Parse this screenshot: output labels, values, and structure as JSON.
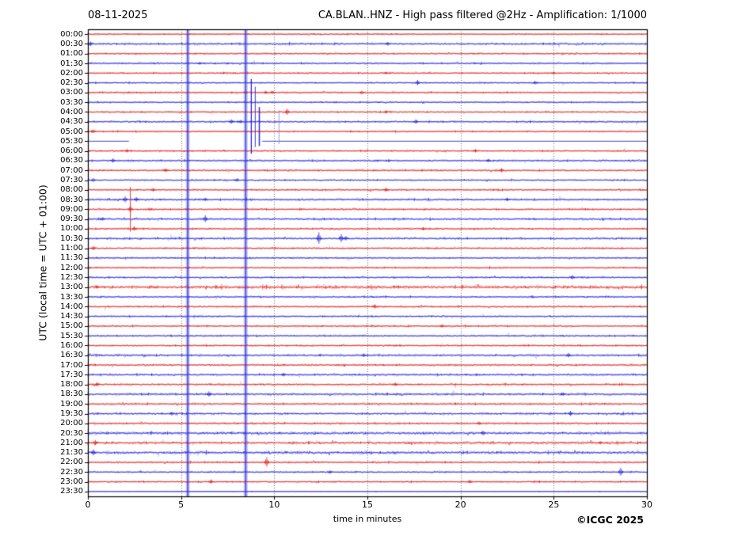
{
  "header": {
    "date": "08-11-2025",
    "title": "CA.BLAN..HNZ - High pass filtered @2Hz - Amplification: 1/1000"
  },
  "footer": {
    "credit": "©ICGC 2025"
  },
  "chart_data": {
    "type": "helicorder-seismogram",
    "station": "CA.BLAN..HNZ",
    "date": "08-11-2025",
    "filter": "High pass filtered @2Hz",
    "amplification": "1/1000",
    "xlabel": "time in minutes",
    "ylabel": "UTC (local time = UTC + 01:00)",
    "xlim": [
      0,
      30
    ],
    "x_ticks": [
      "0",
      "5",
      "10",
      "15",
      "20",
      "25",
      "30"
    ],
    "grid_minutes": [
      5,
      10,
      15,
      20,
      25
    ],
    "grid_style": "dotted",
    "legend": "none",
    "row_labels": [
      "00:00",
      "00:30",
      "01:00",
      "01:30",
      "02:00",
      "02:30",
      "03:00",
      "03:30",
      "04:00",
      "04:30",
      "05:00",
      "05:30",
      "06:00",
      "06:30",
      "07:00",
      "07:30",
      "08:00",
      "08:30",
      "09:00",
      "09:30",
      "10:00",
      "10:30",
      "11:00",
      "11:30",
      "12:00",
      "12:30",
      "13:00",
      "13:30",
      "14:00",
      "14:30",
      "15:00",
      "15:30",
      "16:00",
      "16:30",
      "17:00",
      "17:30",
      "18:00",
      "18:30",
      "19:00",
      "19:30",
      "20:00",
      "20:30",
      "21:00",
      "21:30",
      "22:00",
      "22:30",
      "23:00",
      "23:30"
    ],
    "trace_color_even": "#e01010",
    "trace_color_odd": "#1515dd",
    "frame_color": "#000000",
    "row_activity": [
      0.7,
      1.0,
      0.8,
      0.8,
      0.8,
      0.7,
      0.8,
      0.7,
      0.8,
      0.9,
      0.7,
      0.0,
      0.8,
      0.9,
      0.9,
      0.8,
      0.9,
      1.0,
      0.9,
      1.0,
      0.9,
      1.0,
      0.9,
      0.8,
      0.8,
      0.9,
      1.6,
      0.8,
      0.9,
      0.8,
      0.9,
      0.8,
      0.9,
      1.0,
      0.9,
      1.0,
      1.0,
      1.1,
      1.0,
      1.1,
      1.0,
      1.4,
      1.3,
      1.4,
      0.9,
      0.8,
      0.8,
      0.15
    ],
    "vertical_bands": [
      {
        "minute": 5.36,
        "color": "#3434d6"
      },
      {
        "minute": 8.47,
        "color": "#3434d6"
      }
    ],
    "event_columns": [
      {
        "minute": 2.28,
        "from_row": 15.7,
        "to_row": 20.3,
        "color": "#dd2222",
        "width": 1.0
      },
      {
        "minute": 8.77,
        "from_row": 4.6,
        "to_row": 12.3,
        "color": "#1111cc",
        "width": 1.3
      },
      {
        "minute": 8.98,
        "from_row": 5.4,
        "to_row": 11.6,
        "color": "#2222cc",
        "width": 1.0
      },
      {
        "minute": 9.2,
        "from_row": 7.5,
        "to_row": 11.5,
        "color": "#2222cc",
        "width": 1.6
      },
      {
        "minute": 10.26,
        "from_row": 7.8,
        "to_row": 11.3,
        "color": "#7777dd",
        "width": 0.8
      }
    ],
    "flat_rows": [
      {
        "row": 11,
        "segments": [
          [
            0,
            2.2
          ],
          [
            9.35,
            30
          ]
        ]
      }
    ],
    "events": [
      [
        1,
        0.15,
        5
      ],
      [
        1,
        16.1,
        4
      ],
      [
        3,
        6.0,
        3
      ],
      [
        4,
        16.0,
        3
      ],
      [
        4,
        25.0,
        3
      ],
      [
        5,
        17.7,
        6
      ],
      [
        5,
        24.0,
        4
      ],
      [
        6,
        9.55,
        4
      ],
      [
        6,
        9.9,
        4
      ],
      [
        6,
        14.7,
        4
      ],
      [
        8,
        10.7,
        7
      ],
      [
        8,
        16.0,
        4
      ],
      [
        9,
        7.7,
        5
      ],
      [
        9,
        8.2,
        4
      ],
      [
        9,
        17.6,
        5
      ],
      [
        10,
        0.3,
        4
      ],
      [
        12,
        2.1,
        4
      ],
      [
        12,
        20.8,
        4
      ],
      [
        13,
        1.35,
        5
      ],
      [
        13,
        21.5,
        4
      ],
      [
        14,
        4.2,
        4
      ],
      [
        14,
        22.2,
        5
      ],
      [
        15,
        0.3,
        4
      ],
      [
        15,
        8.0,
        4
      ],
      [
        16,
        3.5,
        4
      ],
      [
        16,
        16.0,
        5
      ],
      [
        17,
        2.0,
        7
      ],
      [
        17,
        2.6,
        5
      ],
      [
        17,
        6.3,
        4
      ],
      [
        17,
        22.5,
        4
      ],
      [
        18,
        2.28,
        8
      ],
      [
        19,
        0.8,
        4
      ],
      [
        19,
        6.3,
        8
      ],
      [
        20,
        2.5,
        5
      ],
      [
        20,
        18.0,
        4
      ],
      [
        21,
        12.4,
        13
      ],
      [
        21,
        13.6,
        9
      ],
      [
        21,
        13.85,
        5
      ],
      [
        22,
        0.3,
        5
      ],
      [
        25,
        26.0,
        5
      ],
      [
        26,
        0.5,
        4
      ],
      [
        28,
        15.4,
        5
      ],
      [
        30,
        19.0,
        4
      ],
      [
        33,
        14.8,
        4
      ],
      [
        33,
        25.8,
        5
      ],
      [
        35,
        10.5,
        4
      ],
      [
        36,
        0.5,
        5
      ],
      [
        36,
        16.5,
        4
      ],
      [
        37,
        6.5,
        6
      ],
      [
        37,
        25.5,
        4
      ],
      [
        39,
        4.5,
        4
      ],
      [
        39,
        25.9,
        6
      ],
      [
        40,
        21.0,
        4
      ],
      [
        41,
        21.2,
        5
      ],
      [
        42,
        0.4,
        6
      ],
      [
        42,
        27.5,
        4
      ],
      [
        43,
        0.3,
        7
      ],
      [
        44,
        9.6,
        11
      ],
      [
        45,
        13.0,
        4
      ],
      [
        45,
        28.6,
        9
      ],
      [
        46,
        6.6,
        5
      ],
      [
        46,
        20.5,
        4
      ]
    ]
  }
}
